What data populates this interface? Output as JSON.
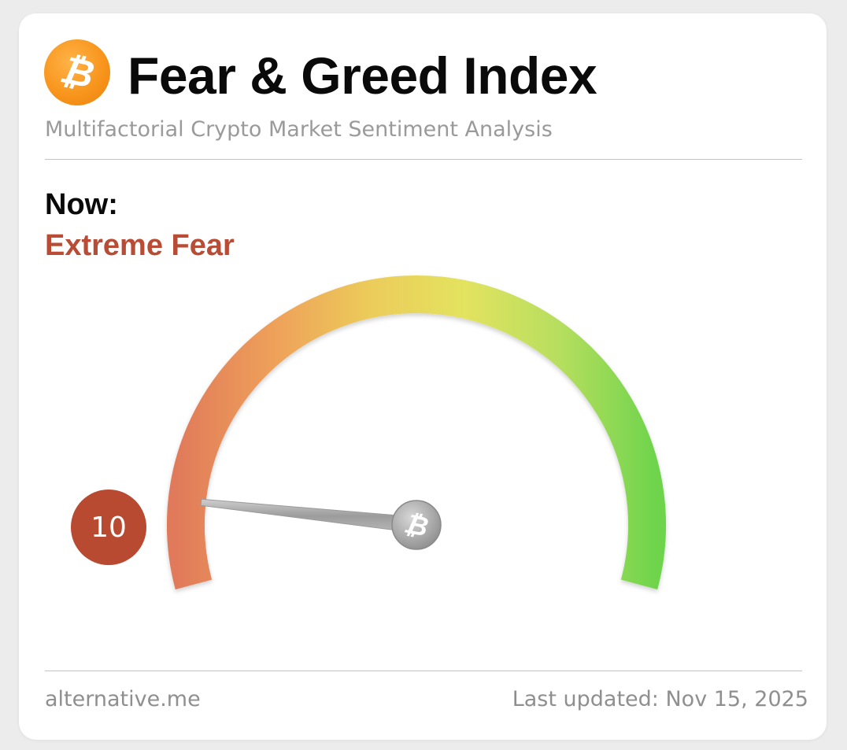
{
  "widget": {
    "title": "Fear & Greed Index",
    "subtitle": "Multifactorial Crypto Market Sentiment Analysis",
    "logo_symbol": "₿",
    "logo_icon": "bitcoin-icon"
  },
  "status": {
    "now_label": "Now:",
    "classification": "Extreme Fear",
    "classification_color": "#b94c34"
  },
  "gauge": {
    "value": 10,
    "value_text": "10",
    "min": 0,
    "max": 100,
    "badge_color": "#b84a31",
    "scale_colors": [
      "#e07a5a",
      "#eea05a",
      "#eccb5a",
      "#e3e35e",
      "#b6de5e",
      "#6ed44c"
    ],
    "needle_hub_symbol": "₿"
  },
  "footer": {
    "source": "alternative.me",
    "last_updated": "Last updated: Nov 15, 2025"
  }
}
